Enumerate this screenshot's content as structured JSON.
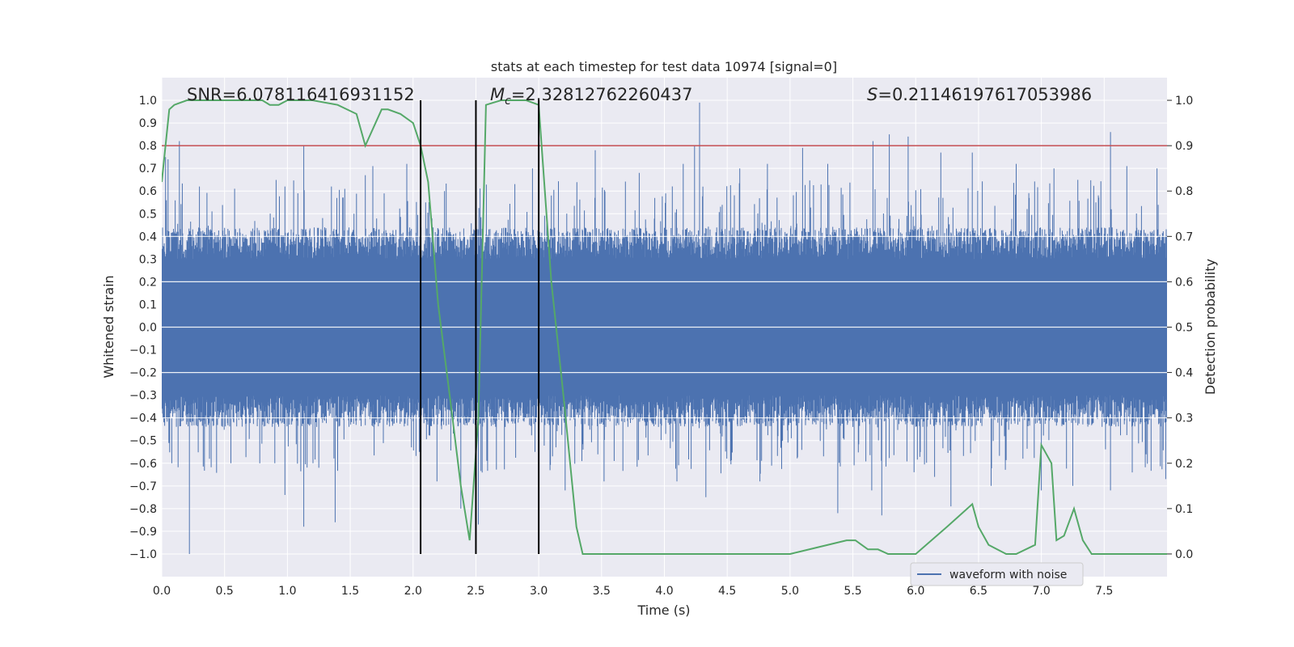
{
  "chart_data": {
    "type": "line",
    "title": "stats at each timestep for test data 10974 [signal=0]",
    "xlabel": "Time (s)",
    "ylabel": "Whitened strain",
    "ylabel_right": "Detection probability",
    "xlim": [
      0.0,
      8.0
    ],
    "ylim": [
      -1.1,
      1.1
    ],
    "ylim_right": [
      -0.05,
      1.05
    ],
    "x_ticks": [
      "0.0",
      "0.5",
      "1.0",
      "1.5",
      "2.0",
      "2.5",
      "3.0",
      "3.5",
      "4.0",
      "4.5",
      "5.0",
      "5.5",
      "6.0",
      "6.5",
      "7.0",
      "7.5"
    ],
    "y_ticks": [
      "1.0",
      "0.9",
      "0.8",
      "0.7",
      "0.6",
      "0.5",
      "0.4",
      "0.3",
      "0.2",
      "0.1",
      "0.0",
      "−0.1",
      "−0.2",
      "−0.3",
      "−0.4",
      "−0.5",
      "−0.6",
      "−0.7",
      "−0.8",
      "−0.9",
      "−1.0"
    ],
    "y_right_ticks": [
      "1.0",
      "0.9",
      "0.8",
      "0.7",
      "0.6",
      "0.5",
      "0.4",
      "0.3",
      "0.2",
      "0.1",
      "0.0"
    ],
    "grid": true,
    "legend_position": "lower-right",
    "annotations": {
      "snr": "SNR=6.078116416931152",
      "mc_symbol": "M",
      "mc_sub": "c",
      "mc_value": "=2.32812762260437",
      "s_symbol": "S",
      "s_value": "=0.21146197617053986"
    },
    "threshold": {
      "name": "threshold",
      "y_right": 0.9,
      "color": "#c44e52"
    },
    "vertical_lines": [
      2.06,
      2.5,
      3.0
    ],
    "series": [
      {
        "name": "waveform with noise",
        "color": "#4c72b0",
        "kind": "noise-band",
        "typical_envelope": 0.4,
        "spikes": [
          [
            0.03,
            0.75
          ],
          [
            0.05,
            0.74
          ],
          [
            0.14,
            0.82
          ],
          [
            0.3,
            0.62
          ],
          [
            0.58,
            0.61
          ],
          [
            0.98,
            0.62
          ],
          [
            1.13,
            0.8
          ],
          [
            1.35,
            0.62
          ],
          [
            1.62,
            0.67
          ],
          [
            1.68,
            0.71
          ],
          [
            1.95,
            0.72
          ],
          [
            2.1,
            0.55
          ],
          [
            2.25,
            0.6
          ],
          [
            2.95,
            0.7
          ],
          [
            3.1,
            0.58
          ],
          [
            3.45,
            0.78
          ],
          [
            3.8,
            0.68
          ],
          [
            4.15,
            0.72
          ],
          [
            4.24,
            0.8
          ],
          [
            4.28,
            0.99
          ],
          [
            4.6,
            0.7
          ],
          [
            4.82,
            0.72
          ],
          [
            5.1,
            0.79
          ],
          [
            5.3,
            0.72
          ],
          [
            5.66,
            0.82
          ],
          [
            5.79,
            0.85
          ],
          [
            5.94,
            0.84
          ],
          [
            6.2,
            0.77
          ],
          [
            6.45,
            0.77
          ],
          [
            6.8,
            0.72
          ],
          [
            7.1,
            0.7
          ],
          [
            7.55,
            0.86
          ],
          [
            7.68,
            0.71
          ],
          [
            7.92,
            0.7
          ],
          [
            0.02,
            -0.42
          ],
          [
            0.08,
            -0.6
          ],
          [
            0.22,
            -1.0
          ],
          [
            0.38,
            -0.58
          ],
          [
            0.55,
            -0.6
          ],
          [
            0.9,
            -0.6
          ],
          [
            0.98,
            -0.74
          ],
          [
            1.13,
            -0.88
          ],
          [
            1.25,
            -0.62
          ],
          [
            1.38,
            -0.86
          ],
          [
            2.05,
            -0.55
          ],
          [
            2.19,
            -0.68
          ],
          [
            2.38,
            -0.8
          ],
          [
            2.52,
            -0.87
          ],
          [
            3.21,
            -0.72
          ],
          [
            3.52,
            -0.68
          ],
          [
            4.1,
            -0.68
          ],
          [
            4.33,
            -0.75
          ],
          [
            4.76,
            -0.68
          ],
          [
            5.38,
            -0.82
          ],
          [
            5.65,
            -0.72
          ],
          [
            5.73,
            -0.83
          ],
          [
            6.15,
            -0.66
          ],
          [
            6.28,
            -0.79
          ],
          [
            6.6,
            -0.7
          ],
          [
            7.0,
            -0.72
          ],
          [
            7.25,
            -0.7
          ],
          [
            7.55,
            -0.72
          ],
          [
            7.99,
            -0.67
          ]
        ]
      },
      {
        "name": "detection probability",
        "color": "#55a868",
        "axis": "right",
        "x": [
          0.0,
          0.06,
          0.1,
          0.2,
          0.4,
          0.6,
          0.8,
          0.86,
          0.93,
          1.0,
          1.2,
          1.4,
          1.55,
          1.62,
          1.75,
          1.8,
          1.9,
          2.0,
          2.06,
          2.12,
          2.2,
          2.3,
          2.38,
          2.45,
          2.52,
          2.58,
          2.7,
          2.9,
          3.0,
          3.1,
          3.2,
          3.3,
          3.35,
          3.5,
          4.0,
          4.5,
          5.0,
          5.45,
          5.52,
          5.57,
          5.62,
          5.7,
          5.78,
          5.9,
          6.0,
          6.25,
          6.45,
          6.5,
          6.58,
          6.72,
          6.8,
          6.95,
          7.0,
          7.08,
          7.12,
          7.18,
          7.26,
          7.33,
          7.4,
          7.5,
          7.6,
          7.7,
          8.0
        ],
        "y": [
          0.82,
          0.98,
          0.99,
          1.0,
          1.0,
          1.0,
          1.0,
          0.99,
          0.99,
          1.0,
          1.0,
          0.99,
          0.97,
          0.9,
          0.98,
          0.98,
          0.97,
          0.95,
          0.9,
          0.82,
          0.55,
          0.33,
          0.15,
          0.03,
          0.3,
          0.99,
          1.0,
          1.0,
          0.99,
          0.6,
          0.34,
          0.06,
          0.0,
          0.0,
          0.0,
          0.0,
          0.0,
          0.03,
          0.03,
          0.02,
          0.01,
          0.01,
          0.0,
          0.0,
          0.0,
          0.06,
          0.11,
          0.06,
          0.02,
          0.0,
          0.0,
          0.02,
          0.24,
          0.2,
          0.03,
          0.04,
          0.1,
          0.03,
          0.0,
          0.0,
          0.0,
          0.0,
          0.0
        ]
      }
    ]
  }
}
